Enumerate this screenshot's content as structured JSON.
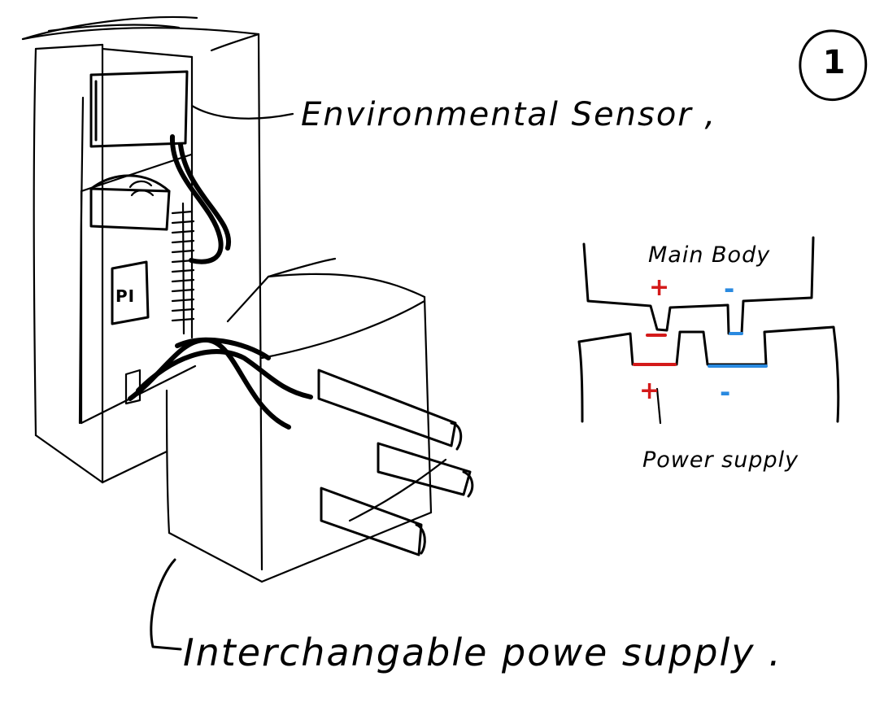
{
  "labels": {
    "environmental_sensor": "Environmental Sensor ,",
    "interchangeable_power_supply": "Interchangable powe supply .",
    "main_body": "Main Body",
    "power_supply": "Power supply",
    "page_number": "1",
    "pi": "PI"
  },
  "polarity": {
    "main_plus": "+",
    "supply_plus": "+",
    "main_minus": "-",
    "supply_minus": "-"
  },
  "colors": {
    "ink": "#000000",
    "positive": "#d41a1a",
    "negative": "#2a8ae0"
  }
}
